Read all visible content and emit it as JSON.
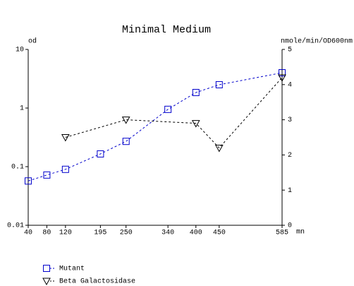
{
  "chart_data": {
    "type": "line",
    "title": "Minimal Medium",
    "xlabel": "mn",
    "ylabel": "od",
    "y2label": "nmole/min/OD600nm",
    "xlim": [
      40,
      585
    ],
    "xticks": [
      40,
      80,
      120,
      195,
      250,
      340,
      400,
      450,
      585
    ],
    "ylim": [
      0.01,
      10
    ],
    "yticks": [
      0.01,
      0.1,
      1,
      10
    ],
    "ylog": true,
    "y2lim": [
      0,
      5
    ],
    "y2ticks": [
      0,
      1,
      2,
      3,
      4,
      5
    ],
    "series": [
      {
        "name": "Mutant",
        "color": "#0000cc",
        "marker": "square",
        "x": [
          40,
          80,
          120,
          195,
          250,
          340,
          400,
          450,
          585
        ],
        "values": [
          0.057,
          0.072,
          0.09,
          0.165,
          0.27,
          0.95,
          1.84,
          2.5,
          4.0
        ]
      },
      {
        "name": "Beta Galactosidase",
        "color": "#000000",
        "marker": "triangle",
        "axis": "y2",
        "x": [
          120,
          250,
          400,
          450,
          585
        ],
        "values": [
          2.5,
          3.0,
          2.9,
          2.2,
          4.2
        ]
      }
    ]
  }
}
